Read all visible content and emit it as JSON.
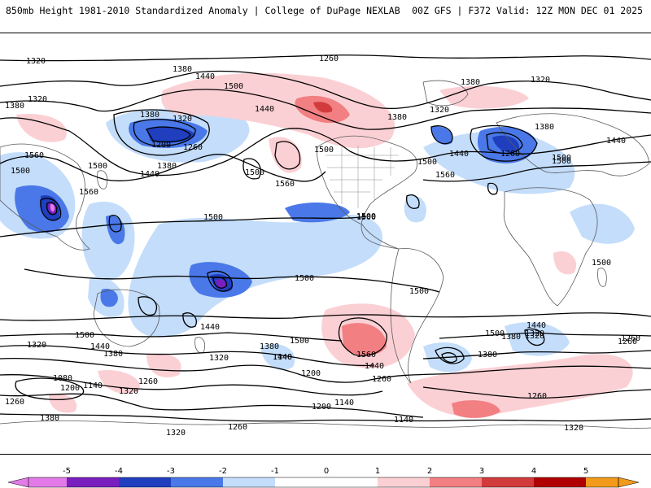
{
  "header": {
    "title_left": "850mb Height 1981-2010 Standardized Anomaly | College of DuPage NEXLAB",
    "title_right": "00Z GFS | F372 Valid: 12Z MON DEC 01 2025"
  },
  "colors": {
    "neg5": "#e27be8",
    "neg4": "#7a1fbf",
    "neg3": "#1f3fbf",
    "neg2": "#4a78e8",
    "neg1": "#c3ddfb",
    "pos1": "#fbd0d4",
    "pos2": "#f27f82",
    "pos3": "#d23b3b",
    "pos4": "#b00000",
    "pos5": "#f29a1a"
  },
  "colorbar": {
    "ticks": [
      "-5",
      "-4",
      "-3",
      "-2",
      "-1",
      "0",
      "1",
      "2",
      "3",
      "4",
      "5"
    ]
  },
  "contour_labels": [
    {
      "id": "l1",
      "text": "1320"
    },
    {
      "id": "l2",
      "text": "1260"
    },
    {
      "id": "l3",
      "text": "1380"
    },
    {
      "id": "l4",
      "text": "1320"
    },
    {
      "id": "l5",
      "text": "1380"
    },
    {
      "id": "l6",
      "text": "1440"
    },
    {
      "id": "l7",
      "text": "1500"
    },
    {
      "id": "l8",
      "text": "1440"
    },
    {
      "id": "l9",
      "text": "1380"
    },
    {
      "id": "l10",
      "text": "1320"
    },
    {
      "id": "l11",
      "text": "1200"
    },
    {
      "id": "l12",
      "text": "1260"
    },
    {
      "id": "l13",
      "text": "1380"
    },
    {
      "id": "l14",
      "text": "1440"
    },
    {
      "id": "l15",
      "text": "1500"
    },
    {
      "id": "l16",
      "text": "1560"
    },
    {
      "id": "l17",
      "text": "1500"
    },
    {
      "id": "l18",
      "text": "1560"
    },
    {
      "id": "l19",
      "text": "1560"
    },
    {
      "id": "l20",
      "text": "1500"
    },
    {
      "id": "l21",
      "text": "1500"
    },
    {
      "id": "l22",
      "text": "1380"
    },
    {
      "id": "l23",
      "text": "1320"
    },
    {
      "id": "l24",
      "text": "1380"
    },
    {
      "id": "l25",
      "text": "1320"
    },
    {
      "id": "l26",
      "text": "1440"
    },
    {
      "id": "l27",
      "text": "1260"
    },
    {
      "id": "l28",
      "text": "1380"
    },
    {
      "id": "l29",
      "text": "1500"
    },
    {
      "id": "l30",
      "text": "1440"
    },
    {
      "id": "l31",
      "text": "1560"
    },
    {
      "id": "l32",
      "text": "1500"
    },
    {
      "id": "l33",
      "text": "1500"
    },
    {
      "id": "l34",
      "text": "1500"
    },
    {
      "id": "l35",
      "text": "1500"
    },
    {
      "id": "l36",
      "text": "1500"
    },
    {
      "id": "l37",
      "text": "1500"
    },
    {
      "id": "l38",
      "text": "1440"
    },
    {
      "id": "l39",
      "text": "1500"
    },
    {
      "id": "l40",
      "text": "1440"
    },
    {
      "id": "l41",
      "text": "1380"
    },
    {
      "id": "l42",
      "text": "1320"
    },
    {
      "id": "l43",
      "text": "1320"
    },
    {
      "id": "l44",
      "text": "1380"
    },
    {
      "id": "l45",
      "text": "1440"
    },
    {
      "id": "l46",
      "text": "1500"
    },
    {
      "id": "l47",
      "text": "1560"
    },
    {
      "id": "l48",
      "text": "1440"
    },
    {
      "id": "l49",
      "text": "1380"
    },
    {
      "id": "l50",
      "text": "1320"
    },
    {
      "id": "l51",
      "text": "1260"
    },
    {
      "id": "l52",
      "text": "1200"
    },
    {
      "id": "l53",
      "text": "1140"
    },
    {
      "id": "l54",
      "text": "1080"
    },
    {
      "id": "l55",
      "text": "1200"
    },
    {
      "id": "l56",
      "text": "1140"
    },
    {
      "id": "l57",
      "text": "1260"
    },
    {
      "id": "l58",
      "text": "1320"
    },
    {
      "id": "l59",
      "text": "1260"
    },
    {
      "id": "l60",
      "text": "1380"
    },
    {
      "id": "l61",
      "text": "1320"
    },
    {
      "id": "l62",
      "text": "1260"
    },
    {
      "id": "l63",
      "text": "1260"
    },
    {
      "id": "l64",
      "text": "1200"
    },
    {
      "id": "l65",
      "text": "1140"
    },
    {
      "id": "l66",
      "text": "1260"
    },
    {
      "id": "l67",
      "text": "1380"
    },
    {
      "id": "l68",
      "text": "1260"
    },
    {
      "id": "l69",
      "text": "1320"
    },
    {
      "id": "l70",
      "text": "1320"
    },
    {
      "id": "l71",
      "text": "1440"
    },
    {
      "id": "l72",
      "text": "1500"
    },
    {
      "id": "l73",
      "text": "1500"
    },
    {
      "id": "l74",
      "text": "1500"
    },
    {
      "id": "l75",
      "text": "1140"
    }
  ]
}
